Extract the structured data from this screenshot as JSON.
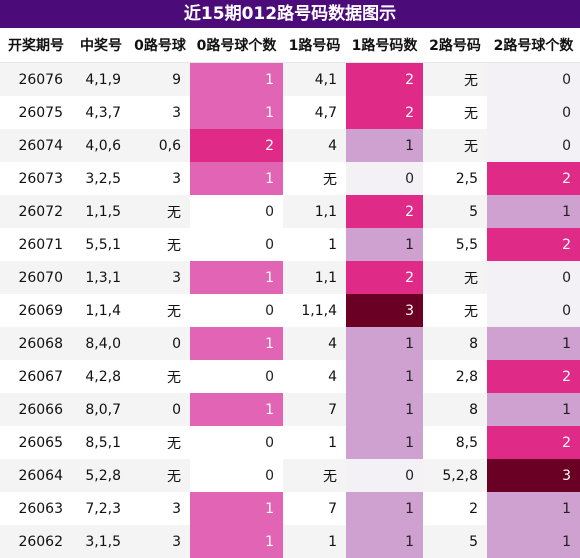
{
  "title": "近15期012路号码数据图示",
  "headers": [
    "开奖期号",
    "中奖号",
    "0路号球",
    "0路号球个数",
    "1路号码",
    "1路号码数",
    "2路号码",
    "2路号球个数"
  ],
  "rows": [
    [
      "26076",
      "4,1,9",
      "9",
      "1",
      "4,1",
      "2",
      "无",
      "0"
    ],
    [
      "26075",
      "4,3,7",
      "3",
      "1",
      "4,7",
      "2",
      "无",
      "0"
    ],
    [
      "26074",
      "4,0,6",
      "0,6",
      "2",
      "4",
      "1",
      "无",
      "0"
    ],
    [
      "26073",
      "3,2,5",
      "3",
      "1",
      "无",
      "0",
      "2,5",
      "2"
    ],
    [
      "26072",
      "1,1,5",
      "无",
      "0",
      "1,1",
      "2",
      "5",
      "1"
    ],
    [
      "26071",
      "5,5,1",
      "无",
      "0",
      "1",
      "1",
      "5,5",
      "2"
    ],
    [
      "26070",
      "1,3,1",
      "3",
      "1",
      "1,1",
      "2",
      "无",
      "0"
    ],
    [
      "26069",
      "1,1,4",
      "无",
      "0",
      "1,1,4",
      "3",
      "无",
      "0"
    ],
    [
      "26068",
      "8,4,0",
      "0",
      "1",
      "4",
      "1",
      "8",
      "1"
    ],
    [
      "26067",
      "4,2,8",
      "无",
      "0",
      "4",
      "1",
      "2,8",
      "2"
    ],
    [
      "26066",
      "8,0,7",
      "0",
      "1",
      "7",
      "1",
      "8",
      "1"
    ],
    [
      "26065",
      "8,5,1",
      "无",
      "0",
      "1",
      "1",
      "8,5",
      "2"
    ],
    [
      "26064",
      "5,2,8",
      "无",
      "0",
      "无",
      "0",
      "5,2,8",
      "3"
    ],
    [
      "26063",
      "7,2,3",
      "3",
      "1",
      "7",
      "1",
      "2",
      "1"
    ],
    [
      "26062",
      "3,1,5",
      "3",
      "1",
      "1",
      "1",
      "5",
      "1"
    ]
  ]
}
